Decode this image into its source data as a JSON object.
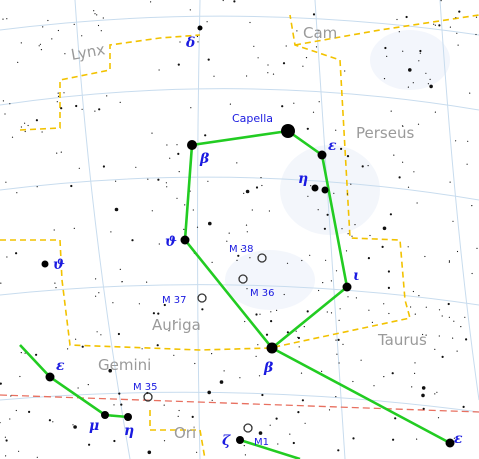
{
  "constellations": [
    "Lynx",
    "Cam",
    "Perseus",
    "Auriga",
    "Gemini",
    "Taurus",
    "Ori"
  ],
  "stars": [
    "δ",
    "Capella",
    "β",
    "ε",
    "η",
    "ϑ",
    "ι",
    "β",
    "ϑ",
    "ε",
    "μ",
    "η",
    "ζ",
    "ε"
  ],
  "objects": [
    "M 38",
    "M 36",
    "M 37",
    "M 35",
    "M1"
  ]
}
